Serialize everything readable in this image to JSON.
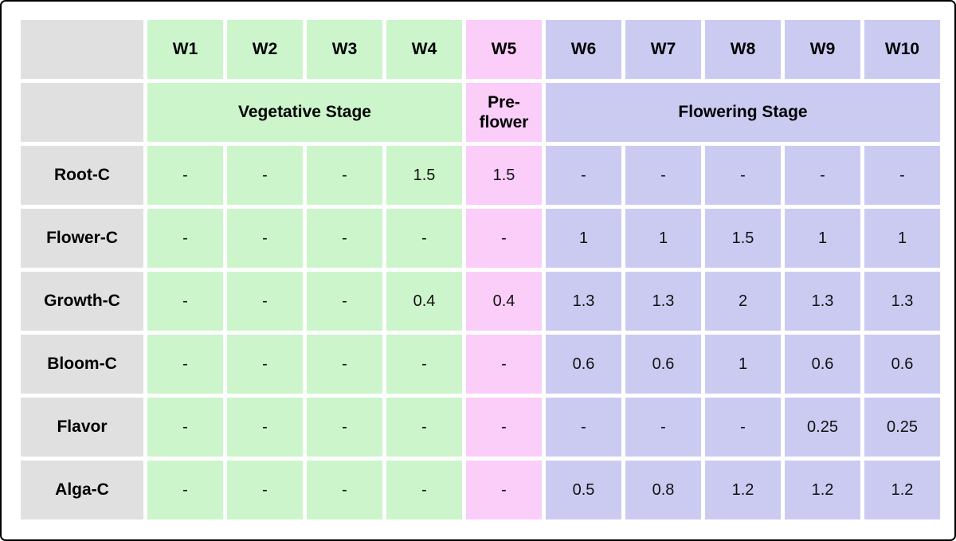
{
  "chart_data": {
    "type": "table",
    "columns": [
      "W1",
      "W2",
      "W3",
      "W4",
      "W5",
      "W6",
      "W7",
      "W8",
      "W9",
      "W10"
    ],
    "stage_groups": [
      {
        "label": "Vegetative Stage",
        "weeks": [
          "W1",
          "W2",
          "W3",
          "W4"
        ],
        "color": "#ccf5cc"
      },
      {
        "label": "Pre-flower",
        "weeks": [
          "W5"
        ],
        "color": "#fbcdf9"
      },
      {
        "label": "Flowering Stage",
        "weeks": [
          "W6",
          "W7",
          "W8",
          "W9",
          "W10"
        ],
        "color": "#cbcbf2"
      }
    ],
    "rows": [
      {
        "label": "Root-C",
        "values": [
          "-",
          "-",
          "-",
          "1.5",
          "1.5",
          "-",
          "-",
          "-",
          "-",
          "-"
        ]
      },
      {
        "label": "Flower-C",
        "values": [
          "-",
          "-",
          "-",
          "-",
          "-",
          "1",
          "1",
          "1.5",
          "1",
          "1"
        ]
      },
      {
        "label": "Growth-C",
        "values": [
          "-",
          "-",
          "-",
          "0.4",
          "0.4",
          "1.3",
          "1.3",
          "2",
          "1.3",
          "1.3"
        ]
      },
      {
        "label": "Bloom-C",
        "values": [
          "-",
          "-",
          "-",
          "-",
          "-",
          "0.6",
          "0.6",
          "1",
          "0.6",
          "0.6"
        ]
      },
      {
        "label": "Flavor",
        "values": [
          "-",
          "-",
          "-",
          "-",
          "-",
          "-",
          "-",
          "-",
          "0.25",
          "0.25"
        ]
      },
      {
        "label": "Alga-C",
        "values": [
          "-",
          "-",
          "-",
          "-",
          "-",
          "0.5",
          "0.8",
          "1.2",
          "1.2",
          "1.2"
        ]
      }
    ],
    "colors": {
      "vegetative_bg": "#ccf5cc",
      "preflower_bg": "#fbcdf9",
      "flowering_bg": "#cbcbf2",
      "label_bg": "#e0e0e0",
      "text": "#000000"
    }
  }
}
